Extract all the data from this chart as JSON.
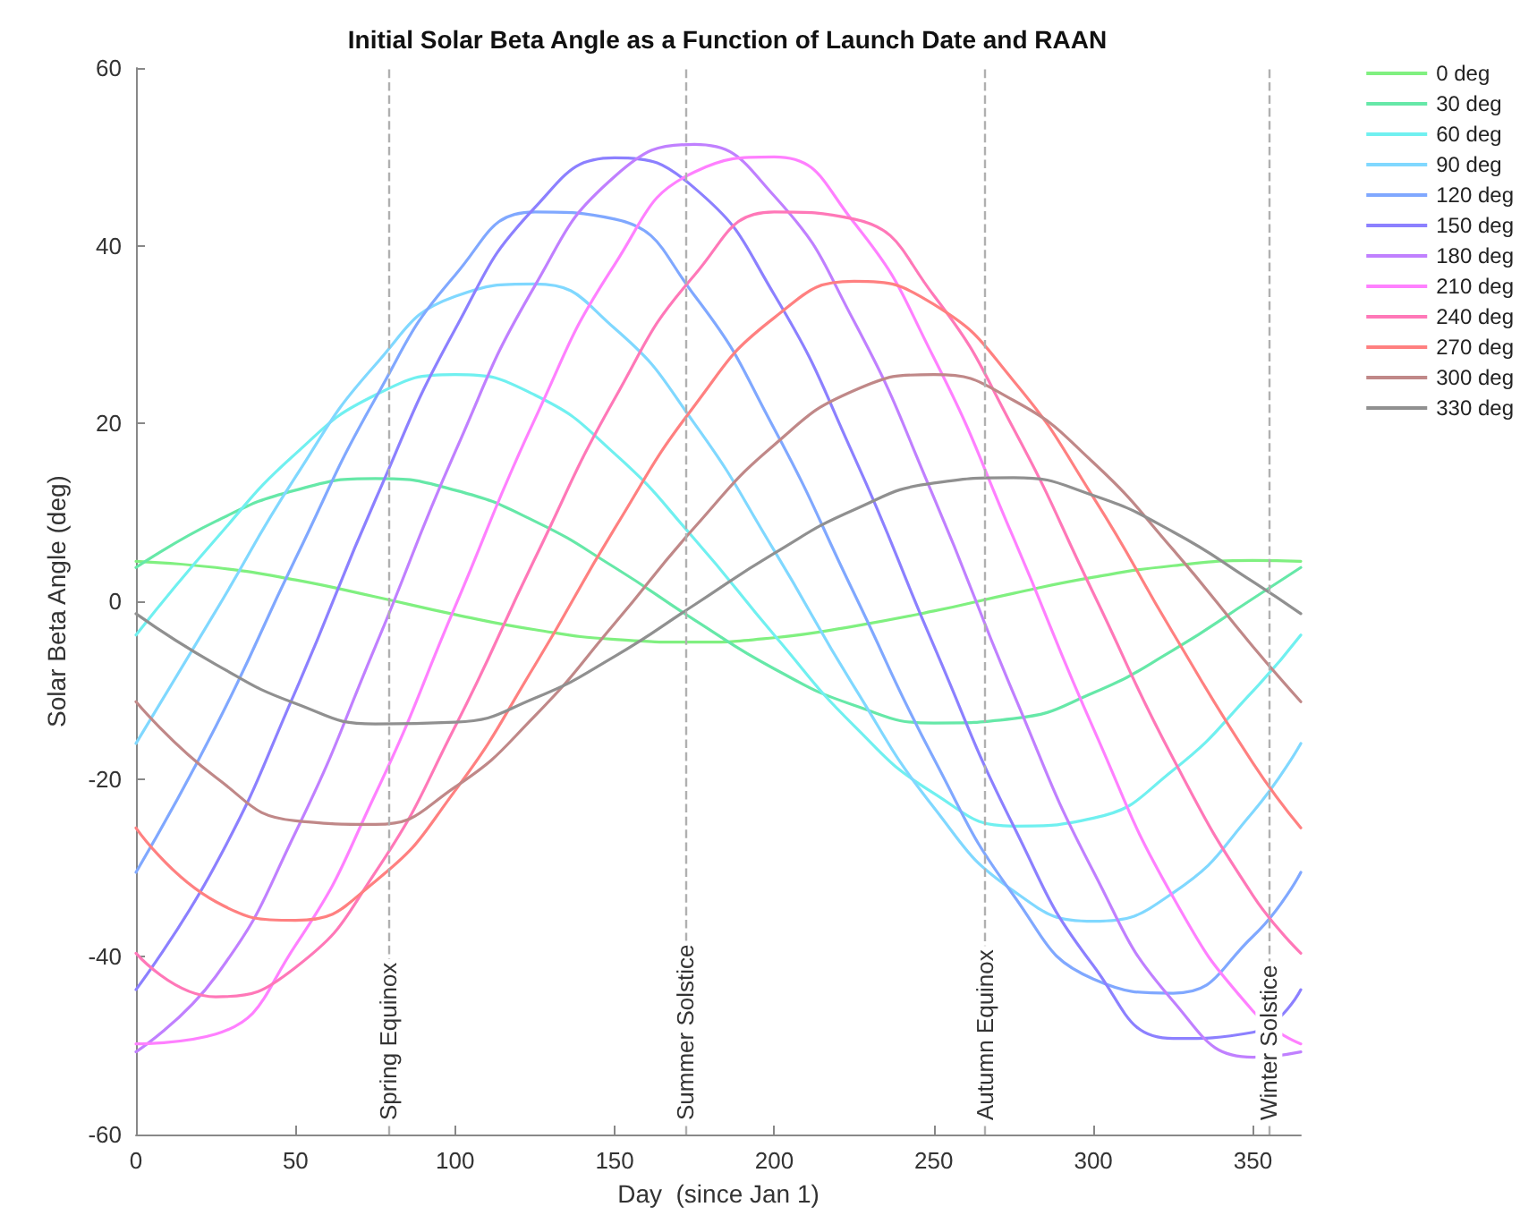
{
  "chart_data": {
    "type": "line",
    "title": "Initial Solar Beta Angle as a Function of Launch Date and RAAN",
    "xlabel": "Day  (since Jan 1)",
    "ylabel": "Solar Beta Angle (deg)",
    "x": [
      0,
      25,
      50,
      75,
      100,
      125,
      150,
      175,
      200,
      225,
      250,
      275,
      300,
      325,
      350,
      365
    ],
    "series": [
      {
        "name": "0 deg",
        "color": "#80f080",
        "values": [
          4.5,
          3.8,
          2.4,
          0.5,
          -1.5,
          -3.2,
          -4.3,
          -4.6,
          -4.1,
          -2.8,
          -1.1,
          0.9,
          2.7,
          4.0,
          4.6,
          4.5
        ]
      },
      {
        "name": "30 deg",
        "color": "#66e8a8",
        "values": [
          3.8,
          9.0,
          12.5,
          13.8,
          12.5,
          9.0,
          3.8,
          -2.1,
          -7.6,
          -11.7,
          -13.7,
          -13.2,
          -10.3,
          -5.5,
          0.3,
          3.8
        ]
      },
      {
        "name": "60 deg",
        "color": "#70f0f0",
        "values": [
          -3.8,
          7.0,
          16.6,
          23.2,
          25.5,
          23.2,
          16.6,
          7.0,
          -3.8,
          -14.0,
          -21.6,
          -25.3,
          -24.4,
          -19.0,
          -10.1,
          -3.8
        ]
      },
      {
        "name": "90 deg",
        "color": "#80d8ff",
        "values": [
          -16.0,
          -1.1,
          14.0,
          26.6,
          34.3,
          35.7,
          30.7,
          20.0,
          5.7,
          -9.6,
          -23.2,
          -32.6,
          -36.0,
          -32.8,
          -23.7,
          -16.0
        ]
      },
      {
        "name": "120 deg",
        "color": "#80a8ff",
        "values": [
          -30.5,
          -14.1,
          4.8,
          22.8,
          36.7,
          43.8,
          43.0,
          34.4,
          19.4,
          0.9,
          -17.7,
          -33.1,
          -42.5,
          -44.1,
          -37.7,
          -30.5
        ]
      },
      {
        "name": "150 deg",
        "color": "#8c80ff",
        "values": [
          -43.7,
          -29.6,
          -10.1,
          11.4,
          30.6,
          44.3,
          49.9,
          46.5,
          34.5,
          16.3,
          -5.0,
          -25.3,
          -41.0,
          -49.2,
          -48.5,
          -43.7
        ]
      },
      {
        "name": "180 deg",
        "color": "#c080ff",
        "values": [
          -50.7,
          -42.2,
          -26.0,
          -5.1,
          16.8,
          35.5,
          47.8,
          51.4,
          45.6,
          31.5,
          11.7,
          -10.4,
          -30.4,
          -45.0,
          -51.3,
          -50.7
        ]
      },
      {
        "name": "210 deg",
        "color": "#ff80ff",
        "values": [
          -49.8,
          -48.7,
          -38.7,
          -21.7,
          -0.6,
          20.5,
          37.9,
          48.3,
          50.0,
          42.6,
          27.4,
          7.1,
          -14.3,
          -33.3,
          -46.1,
          -49.8
        ]
      },
      {
        "name": "240 deg",
        "color": "#ff78b8",
        "values": [
          -39.6,
          -44.5,
          -41.2,
          -30.5,
          -14.1,
          4.8,
          22.8,
          36.7,
          43.8,
          43.0,
          34.4,
          19.4,
          0.9,
          -17.7,
          -33.1,
          -39.6
        ]
      },
      {
        "name": "270 deg",
        "color": "#ff8080",
        "values": [
          -25.5,
          -33.8,
          -35.9,
          -31.5,
          -21.3,
          -7.2,
          8.2,
          22.0,
          31.9,
          36.0,
          33.4,
          24.8,
          11.7,
          -3.6,
          -18.2,
          -25.5
        ]
      },
      {
        "name": "300 deg",
        "color": "#c08888",
        "values": [
          -11.3,
          -19.8,
          -24.7,
          -25.1,
          -20.9,
          -12.9,
          -2.5,
          8.3,
          17.6,
          23.7,
          25.5,
          22.6,
          15.6,
          5.8,
          -5.1,
          -11.3
        ]
      },
      {
        "name": "330 deg",
        "color": "#909090",
        "values": [
          -1.4,
          -7.1,
          -11.5,
          -13.8,
          -13.6,
          -10.9,
          -6.2,
          -0.4,
          5.4,
          10.3,
          13.3,
          13.9,
          11.9,
          7.8,
          2.2,
          -1.4
        ]
      }
    ],
    "xlim": [
      0,
      365
    ],
    "ylim": [
      -60,
      60
    ],
    "xticks": [
      0,
      50,
      100,
      150,
      200,
      250,
      300,
      350
    ],
    "yticks": [
      -60,
      -40,
      -20,
      0,
      20,
      40,
      60
    ],
    "ref_lines": [
      {
        "axis": "x",
        "value": 79,
        "label": "Spring Equinox",
        "color": "#b0b0b0",
        "line_style": "dashed"
      },
      {
        "axis": "x",
        "value": 172,
        "label": "Summer Solstice",
        "color": "#b0b0b0",
        "line_style": "dashed"
      },
      {
        "axis": "x",
        "value": 266,
        "label": "Autumn Equinox",
        "color": "#b0b0b0",
        "line_style": "dashed"
      },
      {
        "axis": "x",
        "value": 355,
        "label": "Winter Solstice",
        "color": "#b0b0b0",
        "line_style": "dashed"
      }
    ],
    "legend": "top right",
    "marker": "none",
    "line_style": "solid"
  }
}
